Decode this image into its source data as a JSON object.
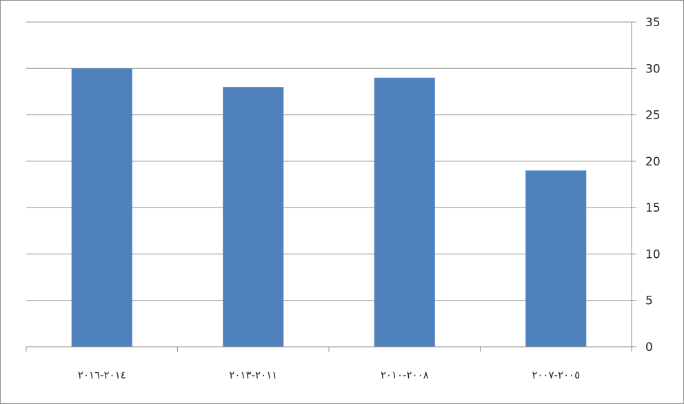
{
  "chart_data": {
    "type": "bar",
    "categories": [
      "٢٠١٦-٢٠١٤",
      "٢٠١٣-٢٠١١",
      "٢٠١٠-٢٠٠٨",
      "٢٠٠٧-٢٠٠٥"
    ],
    "values": [
      30,
      28,
      29,
      19
    ],
    "title": "",
    "xlabel": "",
    "ylabel": "",
    "ylim": [
      0,
      35
    ],
    "yticks": [
      0,
      5,
      10,
      15,
      20,
      25,
      30,
      35
    ],
    "y_axis_side": "right",
    "grid": true,
    "legend": "none",
    "colors": {
      "bar": "#4f81bd",
      "grid": "#8c8c8c",
      "axis": "#8c8c8c"
    }
  }
}
